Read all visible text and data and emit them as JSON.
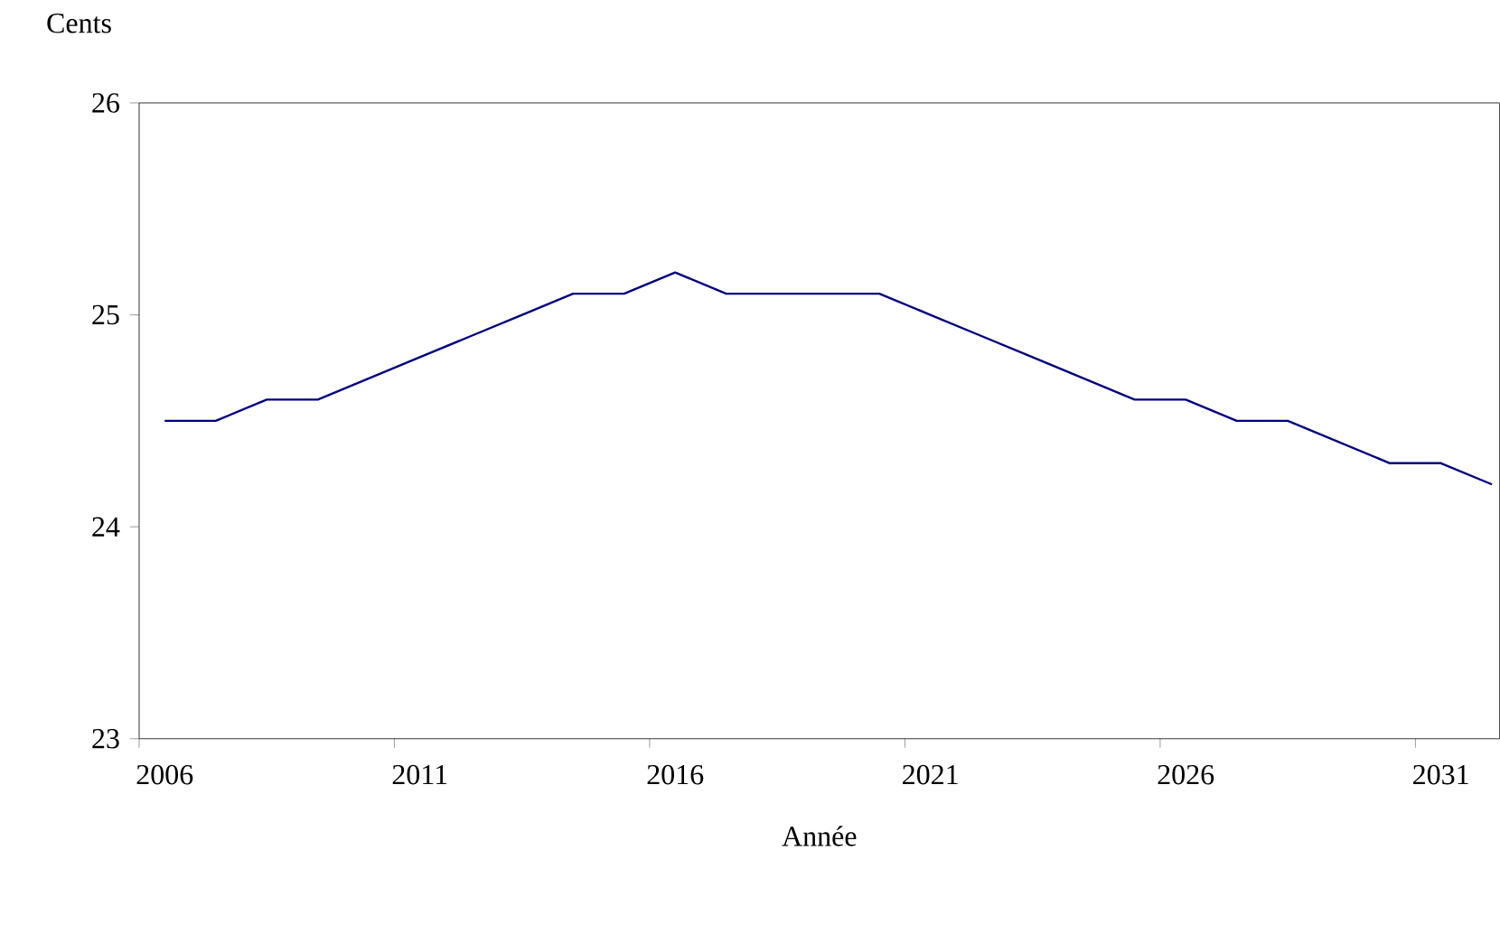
{
  "chart_data": {
    "type": "line",
    "xlabel": "Année",
    "ylabel": "Cents",
    "categories": [
      "2006",
      null,
      null,
      null,
      null,
      "2011",
      null,
      null,
      null,
      null,
      "2016",
      null,
      null,
      null,
      null,
      "2021",
      null,
      null,
      null,
      null,
      "2026",
      null,
      null,
      null,
      null,
      "2031",
      null
    ],
    "values": [
      24.5,
      24.5,
      24.6,
      24.6,
      24.7,
      24.8,
      24.9,
      25.0,
      25.1,
      25.1,
      25.2,
      25.1,
      25.1,
      25.1,
      25.1,
      25.0,
      24.9,
      24.8,
      24.7,
      24.6,
      24.6,
      24.5,
      24.5,
      24.4,
      24.3,
      24.3,
      24.2
    ],
    "color": "#000080",
    "ylim": [
      23,
      26
    ],
    "yticks": [
      23,
      24,
      25,
      26
    ]
  }
}
